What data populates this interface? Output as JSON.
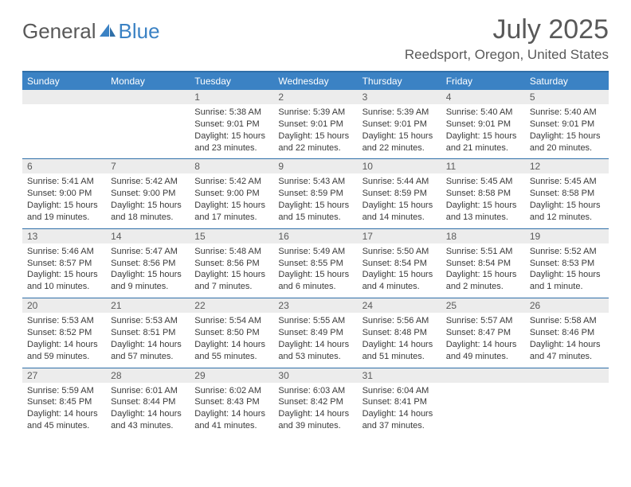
{
  "logo": {
    "word1": "General",
    "word2": "Blue"
  },
  "title": "July 2025",
  "location": "Reedsport, Oregon, United States",
  "colors": {
    "accent": "#3b82c4",
    "rule": "#2f6fa8",
    "daynum_bg": "#ececec",
    "text_muted": "#595959",
    "body_text": "#3a3a3a",
    "background": "#ffffff"
  },
  "weekdays": [
    "Sunday",
    "Monday",
    "Tuesday",
    "Wednesday",
    "Thursday",
    "Friday",
    "Saturday"
  ],
  "weeks": [
    [
      null,
      null,
      {
        "n": "1",
        "sunrise": "5:38 AM",
        "sunset": "9:01 PM",
        "daylight": "15 hours and 23 minutes."
      },
      {
        "n": "2",
        "sunrise": "5:39 AM",
        "sunset": "9:01 PM",
        "daylight": "15 hours and 22 minutes."
      },
      {
        "n": "3",
        "sunrise": "5:39 AM",
        "sunset": "9:01 PM",
        "daylight": "15 hours and 22 minutes."
      },
      {
        "n": "4",
        "sunrise": "5:40 AM",
        "sunset": "9:01 PM",
        "daylight": "15 hours and 21 minutes."
      },
      {
        "n": "5",
        "sunrise": "5:40 AM",
        "sunset": "9:01 PM",
        "daylight": "15 hours and 20 minutes."
      }
    ],
    [
      {
        "n": "6",
        "sunrise": "5:41 AM",
        "sunset": "9:00 PM",
        "daylight": "15 hours and 19 minutes."
      },
      {
        "n": "7",
        "sunrise": "5:42 AM",
        "sunset": "9:00 PM",
        "daylight": "15 hours and 18 minutes."
      },
      {
        "n": "8",
        "sunrise": "5:42 AM",
        "sunset": "9:00 PM",
        "daylight": "15 hours and 17 minutes."
      },
      {
        "n": "9",
        "sunrise": "5:43 AM",
        "sunset": "8:59 PM",
        "daylight": "15 hours and 15 minutes."
      },
      {
        "n": "10",
        "sunrise": "5:44 AM",
        "sunset": "8:59 PM",
        "daylight": "15 hours and 14 minutes."
      },
      {
        "n": "11",
        "sunrise": "5:45 AM",
        "sunset": "8:58 PM",
        "daylight": "15 hours and 13 minutes."
      },
      {
        "n": "12",
        "sunrise": "5:45 AM",
        "sunset": "8:58 PM",
        "daylight": "15 hours and 12 minutes."
      }
    ],
    [
      {
        "n": "13",
        "sunrise": "5:46 AM",
        "sunset": "8:57 PM",
        "daylight": "15 hours and 10 minutes."
      },
      {
        "n": "14",
        "sunrise": "5:47 AM",
        "sunset": "8:56 PM",
        "daylight": "15 hours and 9 minutes."
      },
      {
        "n": "15",
        "sunrise": "5:48 AM",
        "sunset": "8:56 PM",
        "daylight": "15 hours and 7 minutes."
      },
      {
        "n": "16",
        "sunrise": "5:49 AM",
        "sunset": "8:55 PM",
        "daylight": "15 hours and 6 minutes."
      },
      {
        "n": "17",
        "sunrise": "5:50 AM",
        "sunset": "8:54 PM",
        "daylight": "15 hours and 4 minutes."
      },
      {
        "n": "18",
        "sunrise": "5:51 AM",
        "sunset": "8:54 PM",
        "daylight": "15 hours and 2 minutes."
      },
      {
        "n": "19",
        "sunrise": "5:52 AM",
        "sunset": "8:53 PM",
        "daylight": "15 hours and 1 minute."
      }
    ],
    [
      {
        "n": "20",
        "sunrise": "5:53 AM",
        "sunset": "8:52 PM",
        "daylight": "14 hours and 59 minutes."
      },
      {
        "n": "21",
        "sunrise": "5:53 AM",
        "sunset": "8:51 PM",
        "daylight": "14 hours and 57 minutes."
      },
      {
        "n": "22",
        "sunrise": "5:54 AM",
        "sunset": "8:50 PM",
        "daylight": "14 hours and 55 minutes."
      },
      {
        "n": "23",
        "sunrise": "5:55 AM",
        "sunset": "8:49 PM",
        "daylight": "14 hours and 53 minutes."
      },
      {
        "n": "24",
        "sunrise": "5:56 AM",
        "sunset": "8:48 PM",
        "daylight": "14 hours and 51 minutes."
      },
      {
        "n": "25",
        "sunrise": "5:57 AM",
        "sunset": "8:47 PM",
        "daylight": "14 hours and 49 minutes."
      },
      {
        "n": "26",
        "sunrise": "5:58 AM",
        "sunset": "8:46 PM",
        "daylight": "14 hours and 47 minutes."
      }
    ],
    [
      {
        "n": "27",
        "sunrise": "5:59 AM",
        "sunset": "8:45 PM",
        "daylight": "14 hours and 45 minutes."
      },
      {
        "n": "28",
        "sunrise": "6:01 AM",
        "sunset": "8:44 PM",
        "daylight": "14 hours and 43 minutes."
      },
      {
        "n": "29",
        "sunrise": "6:02 AM",
        "sunset": "8:43 PM",
        "daylight": "14 hours and 41 minutes."
      },
      {
        "n": "30",
        "sunrise": "6:03 AM",
        "sunset": "8:42 PM",
        "daylight": "14 hours and 39 minutes."
      },
      {
        "n": "31",
        "sunrise": "6:04 AM",
        "sunset": "8:41 PM",
        "daylight": "14 hours and 37 minutes."
      },
      null,
      null
    ]
  ],
  "labels": {
    "sunrise": "Sunrise:",
    "sunset": "Sunset:",
    "daylight": "Daylight:"
  }
}
